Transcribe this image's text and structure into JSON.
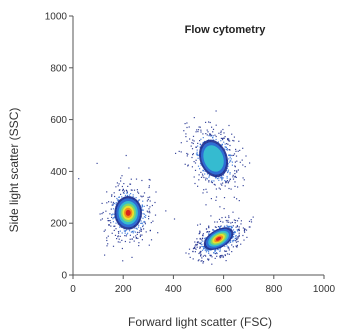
{
  "chart_data": {
    "type": "scatter",
    "subtype": "density-scatter",
    "title": "Flow cytometry",
    "xlabel": "Forward light scatter (FSC)",
    "ylabel": "Side light scatter (SSC)",
    "xlim": [
      0,
      1000
    ],
    "ylim": [
      0,
      1000
    ],
    "xticks": [
      0,
      200,
      400,
      600,
      800,
      1000
    ],
    "yticks": [
      0,
      200,
      400,
      600,
      800,
      1000
    ],
    "grid": false,
    "legend": "none",
    "colormap": [
      "#1a2a8c",
      "#2f6fd6",
      "#36c0d0",
      "#7fd86a",
      "#f2e02a",
      "#f08a1c",
      "#d81e1e"
    ],
    "series": [
      {
        "center_x": 220,
        "center_y": 240,
        "spread_x": 55,
        "spread_y": 65,
        "rotation_deg": 0,
        "peak_color": "#d81e1e"
      },
      {
        "center_x": 560,
        "center_y": 450,
        "spread_x": 55,
        "spread_y": 75,
        "rotation_deg": -20,
        "peak_color": "#36c0d0"
      },
      {
        "center_x": 580,
        "center_y": 140,
        "spread_x": 65,
        "spread_y": 35,
        "rotation_deg": -30,
        "peak_color": "#d81e1e"
      }
    ]
  }
}
